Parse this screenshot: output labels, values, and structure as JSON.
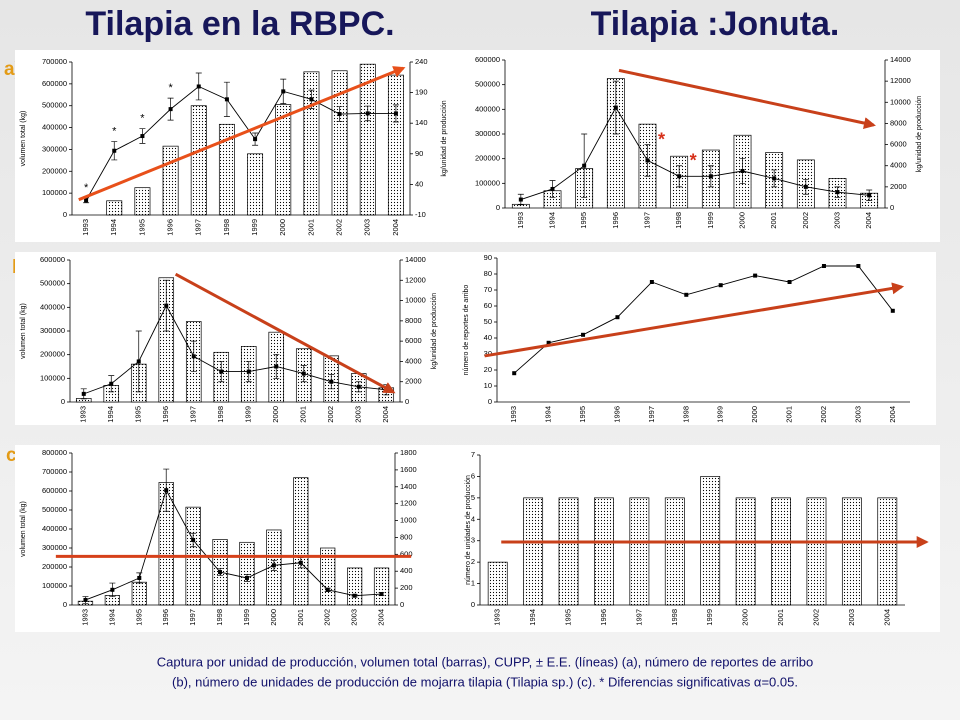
{
  "title_left": "Tilapia en la RBPC.",
  "title_right": "Tilapia :Jonuta.",
  "panel_labels": [
    "a)",
    "b)",
    "c)"
  ],
  "caption_lines": [
    "Captura por unidad de producción, volumen total (barras), CUPP, ± E.E. (líneas) (a), número de reportes de arribo",
    "(b), número de unidades de producción de mojarra tilapia (Tilapia sp.) (c). * Diferencias significativas α=0.05."
  ],
  "chart_data": [
    {
      "type": "combo",
      "categories": [
        "1993",
        "1994",
        "1995",
        "1996",
        "1997",
        "1998",
        "1999",
        "2000",
        "2001",
        "2002",
        "2003",
        "2004"
      ],
      "series": [
        {
          "kind": "bar",
          "color": "#000000",
          "values": [
            null,
            65000,
            125000,
            315000,
            500000,
            415000,
            280000,
            505000,
            655000,
            660000,
            690000,
            640000
          ]
        },
        {
          "kind": "line",
          "axis": "y2",
          "color": "#000000",
          "values": [
            14,
            95,
            119,
            163,
            200,
            179,
            114,
            192,
            179,
            155,
            156,
            156
          ],
          "errors": [
            4,
            15,
            12,
            18,
            22,
            28,
            10,
            20,
            15,
            12,
            12,
            14
          ]
        }
      ],
      "ylim": [
        0,
        700000
      ],
      "yticks": [
        0,
        100000,
        200000,
        300000,
        400000,
        500000,
        600000,
        700000
      ],
      "y2lim": [
        -10,
        240
      ],
      "y2ticks": [
        -10,
        40,
        90,
        140,
        190,
        240
      ],
      "ylabel": "volumen total (kg)",
      "y2label": "kg/unidad de producción",
      "annotations": [
        {
          "text": "*",
          "category": "1993"
        },
        {
          "text": "*",
          "category": "1994"
        },
        {
          "text": "*",
          "category": "1995"
        },
        {
          "text": "*",
          "category": "1996"
        }
      ],
      "annotation_color": "#000000",
      "trend_color": "#e8501a"
    },
    {
      "type": "combo",
      "categories": [
        "1993",
        "1994",
        "1995",
        "1996",
        "1997",
        "1998",
        "1999",
        "2000",
        "2001",
        "2002",
        "2003",
        "2004"
      ],
      "series": [
        {
          "kind": "bar",
          "color": "#000000",
          "values": [
            15000,
            70000,
            160000,
            525000,
            340000,
            210000,
            235000,
            295000,
            225000,
            195000,
            120000,
            60000
          ]
        },
        {
          "kind": "line",
          "axis": "y2",
          "color": "#000000",
          "values": [
            800,
            1800,
            4000,
            9500,
            4500,
            3000,
            3000,
            3500,
            2800,
            2000,
            1500,
            1200
          ],
          "errors": [
            500,
            800,
            3000,
            2500,
            1500,
            1000,
            1000,
            1200,
            800,
            700,
            500,
            500
          ]
        }
      ],
      "ylim": [
        0,
        600000
      ],
      "yticks": [
        0,
        100000,
        200000,
        300000,
        400000,
        500000,
        600000
      ],
      "y2lim": [
        0,
        14000
      ],
      "y2ticks": [
        0,
        2000,
        4000,
        6000,
        8000,
        10000,
        12000,
        14000
      ],
      "y2label": "kg/unidad de producción",
      "annotations": [
        {
          "text": "*",
          "category": "1997"
        },
        {
          "text": "*",
          "category": "1998"
        }
      ],
      "annotation_color": "#d6301a",
      "trend_color": "#c8401a"
    },
    {
      "type": "combo",
      "categories": [
        "1993",
        "1994",
        "1995",
        "1996",
        "1997",
        "1998",
        "1999",
        "2000",
        "2001",
        "2002",
        "2003",
        "2004"
      ],
      "series": [
        {
          "kind": "bar",
          "color": "#000000",
          "values": [
            15000,
            70000,
            160000,
            525000,
            340000,
            210000,
            235000,
            295000,
            225000,
            195000,
            120000,
            60000
          ]
        },
        {
          "kind": "line",
          "axis": "y2",
          "color": "#000000",
          "values": [
            800,
            1800,
            4000,
            9500,
            4500,
            3000,
            3000,
            3500,
            2800,
            2000,
            1500,
            1200
          ],
          "errors": [
            500,
            800,
            3000,
            2500,
            1500,
            1000,
            1000,
            1200,
            800,
            700,
            500,
            500
          ]
        }
      ],
      "ylim": [
        0,
        600000
      ],
      "yticks": [
        0,
        100000,
        200000,
        300000,
        400000,
        500000,
        600000
      ],
      "y2lim": [
        0,
        14000
      ],
      "y2ticks": [
        0,
        2000,
        4000,
        6000,
        8000,
        10000,
        12000,
        14000
      ],
      "ylabel": "volumen total (kg)",
      "y2label": "kg/unidad de producción",
      "trend_color": "#c8401a"
    },
    {
      "type": "line",
      "categories": [
        "1993",
        "1994",
        "1995",
        "1996",
        "1997",
        "1998",
        "1999",
        "2000",
        "2001",
        "2002",
        "2003",
        "2004"
      ],
      "series": [
        {
          "kind": "line",
          "color": "#000000",
          "values": [
            18,
            37,
            42,
            53,
            75,
            67,
            73,
            79,
            75,
            85,
            85,
            57
          ]
        }
      ],
      "ylim": [
        0,
        90
      ],
      "yticks": [
        0,
        10,
        20,
        30,
        40,
        50,
        60,
        70,
        80,
        90
      ],
      "ylabel": "número de reportes de arribo",
      "trend_color": "#c8401a"
    },
    {
      "type": "combo",
      "categories": [
        "1993",
        "1994",
        "1995",
        "1996",
        "1997",
        "1998",
        "1999",
        "2000",
        "2001",
        "2002",
        "2003",
        "2004"
      ],
      "series": [
        {
          "kind": "bar",
          "color": "#000000",
          "values": [
            20000,
            50000,
            120000,
            645000,
            515000,
            345000,
            330000,
            395000,
            670000,
            300000,
            195000,
            195000
          ]
        },
        {
          "kind": "line",
          "axis": "y2",
          "color": "#000000",
          "values": [
            60,
            180,
            320,
            1360,
            770,
            390,
            320,
            470,
            500,
            180,
            110,
            130
          ],
          "errors": [
            40,
            80,
            60,
            250,
            80,
            40,
            40,
            60,
            60,
            20,
            15,
            20
          ]
        }
      ],
      "ylim": [
        0,
        800000
      ],
      "yticks": [
        0,
        100000,
        200000,
        300000,
        400000,
        500000,
        600000,
        700000,
        800000
      ],
      "y2lim": [
        0,
        1800
      ],
      "y2ticks": [
        0,
        200,
        400,
        600,
        800,
        1000,
        1200,
        1400,
        1600,
        1800
      ],
      "ylabel": "volumen total (kg)",
      "trend_color": "#d6401a"
    },
    {
      "type": "bar",
      "categories": [
        "1993",
        "1994",
        "1995",
        "1996",
        "1997",
        "1998",
        "1999",
        "2000",
        "2001",
        "2002",
        "2003",
        "2004"
      ],
      "series": [
        {
          "kind": "bar",
          "color": "#000000",
          "values": [
            2,
            5,
            5,
            5,
            5,
            5,
            6,
            5,
            5,
            5,
            5,
            5
          ]
        }
      ],
      "ylim": [
        0,
        7
      ],
      "yticks": [
        0,
        1,
        2,
        3,
        4,
        5,
        6,
        7
      ],
      "ylabel": "número de unidades de producción",
      "trend_color": "#c8401a"
    }
  ]
}
